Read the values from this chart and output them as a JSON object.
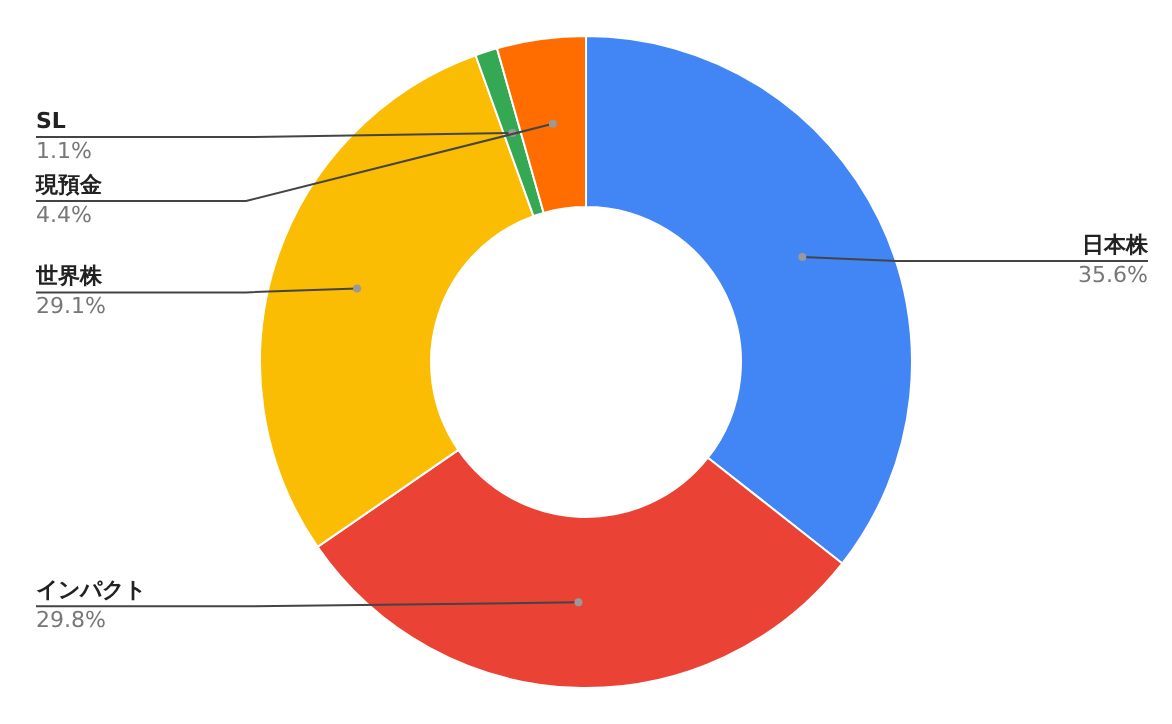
{
  "chart_data": {
    "type": "donut",
    "categories": [
      "日本株",
      "インパクト",
      "世界株",
      "SL",
      "現預金"
    ],
    "values": [
      35.6,
      29.8,
      29.1,
      1.1,
      4.4
    ],
    "colors": [
      "#4285f4",
      "#ea4335",
      "#fbbc04",
      "#34a853",
      "#ff6d01"
    ],
    "value_labels": [
      "35.6%",
      "29.8%",
      "29.1%",
      "1.1%",
      "4.4%"
    ],
    "legend": false
  }
}
